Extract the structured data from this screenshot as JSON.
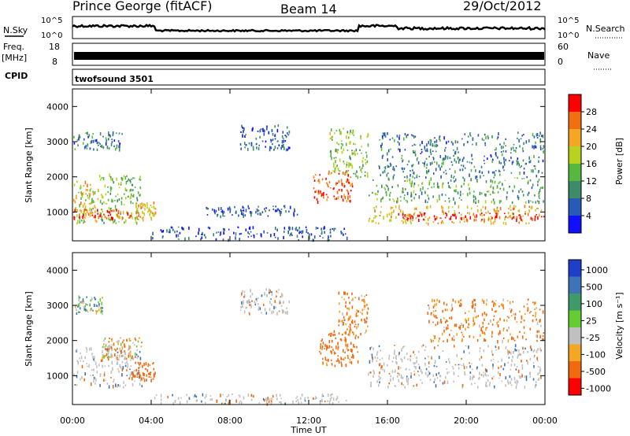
{
  "header": {
    "station": "Prince George (fitACF)",
    "beam": "Beam 14",
    "date": "29/Oct/2012"
  },
  "strip": {
    "nsky_label": "N.Sky",
    "nsky_ticks": [
      "10^5",
      "10^0"
    ],
    "nsearch_label": "N.Search",
    "nsearch_ticks": [
      "10^5",
      "10^0"
    ],
    "freq_label": "Freq.",
    "freq_unit": "[MHz]",
    "freq_ticks": [
      "18",
      "8"
    ],
    "nave_label": "Nave",
    "nave_ticks": [
      "60",
      "0"
    ],
    "cpid_label": "CPID",
    "cpid_value": "twofsound 3501"
  },
  "chart_data": [
    {
      "type": "heatmap",
      "panel": "power",
      "ylabel": "Slant Range [km]",
      "xlabel": "",
      "x_unit": "hours UT",
      "xlim": [
        0,
        24
      ],
      "ylim": [
        180,
        4500
      ],
      "y_ticks": [
        1000,
        2000,
        3000,
        4000
      ],
      "colorbar_label": "Power [dB]",
      "colorbar_ticks": [
        "4",
        "8",
        "12",
        "16",
        "20",
        "24",
        "28"
      ],
      "colorbar_range": [
        0,
        30
      ],
      "colors": [
        "#1010ff",
        "#2a5ab8",
        "#3f8a6a",
        "#57b840",
        "#b8d21e",
        "#f5a623",
        "#f07010",
        "#ff0000"
      ],
      "regions": [
        {
          "t": [
            0.0,
            1.3
          ],
          "r": [
            700,
            1900
          ],
          "level": 18
        },
        {
          "t": [
            1.3,
            3.5
          ],
          "r": [
            700,
            2100
          ],
          "level": 14
        },
        {
          "t": [
            0.0,
            3.0
          ],
          "r": [
            850,
            1100
          ],
          "level": 26
        },
        {
          "t": [
            3.2,
            4.2
          ],
          "r": [
            800,
            1300
          ],
          "level": 20
        },
        {
          "t": [
            0.0,
            2.5
          ],
          "r": [
            2800,
            3300
          ],
          "level": 8
        },
        {
          "t": [
            8.5,
            11.0
          ],
          "r": [
            2800,
            3500
          ],
          "level": 6
        },
        {
          "t": [
            4.0,
            14.0
          ],
          "r": [
            200,
            600
          ],
          "level": 5
        },
        {
          "t": [
            12.2,
            14.2
          ],
          "r": [
            1300,
            2200
          ],
          "level": 26
        },
        {
          "t": [
            13.0,
            15.0
          ],
          "r": [
            2000,
            3400
          ],
          "level": 14
        },
        {
          "t": [
            15.0,
            24.0
          ],
          "r": [
            700,
            1200
          ],
          "level": 20
        },
        {
          "t": [
            16.5,
            24.0
          ],
          "r": [
            800,
            1000
          ],
          "level": 28
        },
        {
          "t": [
            15.0,
            24.0
          ],
          "r": [
            1300,
            2000
          ],
          "level": 12
        },
        {
          "t": [
            15.5,
            24.0
          ],
          "r": [
            2000,
            3300
          ],
          "level": 8
        },
        {
          "t": [
            6.5,
            11.5
          ],
          "r": [
            900,
            1200
          ],
          "level": 6
        }
      ]
    },
    {
      "type": "heatmap",
      "panel": "velocity",
      "ylabel": "Slant Range [km]",
      "xlabel": "Time UT",
      "x_unit": "hours UT",
      "xlim": [
        0,
        24
      ],
      "ylim": [
        180,
        4500
      ],
      "y_ticks": [
        1000,
        2000,
        3000,
        4000
      ],
      "x_ticks": [
        "00:00",
        "04:00",
        "08:00",
        "12:00",
        "16:00",
        "20:00",
        "00:00"
      ],
      "colorbar_label": "Velocity [m s⁻¹]",
      "colorbar_ticks": [
        "1000",
        "500",
        "100",
        "25",
        "-25",
        "-100",
        "-500",
        "-1000"
      ],
      "colors": [
        "#1f3fc8",
        "#3f73b8",
        "#3f9a6a",
        "#66cc33",
        "#c0c0c0",
        "#f5a623",
        "#f06a10",
        "#ff0000"
      ],
      "regions": [
        {
          "t": [
            0.0,
            3.5
          ],
          "r": [
            700,
            1900
          ],
          "v": 0
        },
        {
          "t": [
            1.5,
            3.5
          ],
          "r": [
            1500,
            2100
          ],
          "v": -100
        },
        {
          "t": [
            3.0,
            4.2
          ],
          "r": [
            900,
            1400
          ],
          "v": -300
        },
        {
          "t": [
            0.0,
            1.5
          ],
          "r": [
            2800,
            3300
          ],
          "v": 100
        },
        {
          "t": [
            8.5,
            11.0
          ],
          "r": [
            2800,
            3500
          ],
          "v": 0
        },
        {
          "t": [
            4.0,
            14.0
          ],
          "r": [
            200,
            500
          ],
          "v": 0
        },
        {
          "t": [
            12.5,
            14.5
          ],
          "r": [
            1300,
            2300
          ],
          "v": -200
        },
        {
          "t": [
            13.5,
            15.0
          ],
          "r": [
            2200,
            3400
          ],
          "v": -150
        },
        {
          "t": [
            15.0,
            24.0
          ],
          "r": [
            700,
            1900
          ],
          "v": 0
        },
        {
          "t": [
            18.0,
            24.0
          ],
          "r": [
            2000,
            3200
          ],
          "v": -150
        }
      ]
    }
  ]
}
